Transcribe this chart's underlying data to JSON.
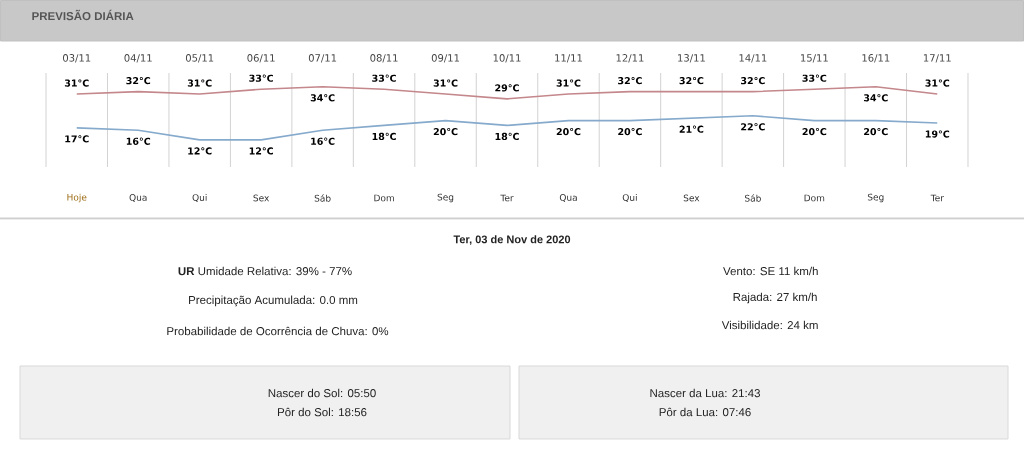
{
  "chart_data": [
    {
      "type": "line",
      "title": "PREVISÃO DIÁRIA",
      "categories": [
        "03/11",
        "04/11",
        "05/11",
        "06/11",
        "07/11",
        "08/11",
        "09/11",
        "10/11",
        "11/11",
        "12/11",
        "13/11",
        "14/11",
        "15/11",
        "16/11",
        "17/11"
      ],
      "series": [
        {
          "color": "#c4878b",
          "values": [
            31,
            32,
            31,
            33,
            34,
            33,
            31,
            29,
            31,
            32,
            32,
            32,
            33,
            34,
            31
          ],
          "value_labels": [
            "31°C",
            "32°C",
            "31°C",
            "33°C",
            "34°C",
            "33°C",
            "31°C",
            "29°C",
            "31°C",
            "32°C",
            "32°C",
            "32°C",
            "33°C",
            "34°C",
            "31°C"
          ]
        },
        {
          "color": "#86aacc",
          "values": [
            17,
            16,
            12,
            12,
            16,
            18,
            20,
            18,
            20,
            20,
            21,
            22,
            20,
            20,
            19
          ],
          "value_labels": [
            "17°C",
            "16°C",
            "12°C",
            "12°C",
            "16°C",
            "18°C",
            "20°C",
            "18°C",
            "20°C",
            "20°C",
            "21°C",
            "22°C",
            "20°C",
            "20°C",
            "19°C"
          ]
        }
      ],
      "annotations": [
        "Hoje",
        "Qua",
        "Qui",
        "Sex",
        "Sáb",
        "Dom",
        "Seg",
        "Ter",
        "Qua",
        "Qui",
        "Sex",
        "Sáb",
        "Dom",
        "Seg",
        "Ter"
      ],
      "grid": "x",
      "tick_labels": "x"
    },
    {
      "type": "other",
      "title": "Ter, 03 de Nov de 2020",
      "annotations": [
        "**UR** Umidade Relativa: 39% - 77%",
        "Precipitação Acumulada: 0.0 mm",
        "Probabilidade de Ocorrência de Chuva: 0%",
        "Vento: SE 11 km/h",
        "Rajada: 27 km/h",
        "Visibilidade: 24 km",
        "Nascer do Sol: 05:50",
        "Pôr do Sol: 18:56",
        "Nascer da Lua: 21:43",
        "Pôr da Lua: 07:46"
      ]
    }
  ]
}
